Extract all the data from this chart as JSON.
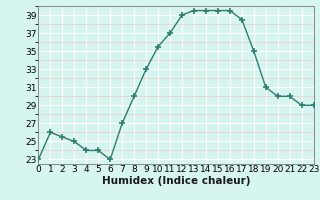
{
  "x": [
    0,
    1,
    2,
    3,
    4,
    5,
    6,
    7,
    8,
    9,
    10,
    11,
    12,
    13,
    14,
    15,
    16,
    17,
    18,
    19,
    20,
    21,
    22,
    23
  ],
  "y": [
    23,
    26,
    25.5,
    25,
    24,
    24,
    23,
    27,
    30,
    33,
    35.5,
    37,
    39,
    39.5,
    39.5,
    39.5,
    39.5,
    38.5,
    35,
    31,
    30,
    30,
    29,
    29
  ],
  "line_color": "#2e7d6e",
  "marker": "+",
  "marker_size": 4,
  "marker_lw": 1.2,
  "line_width": 1.0,
  "bg_color": "#d6f5f0",
  "grid_color_major": "#ffffff",
  "grid_color_minor": "#f0c8c8",
  "xlabel": "Humidex (Indice chaleur)",
  "xlim": [
    0,
    23
  ],
  "ylim": [
    22.5,
    40
  ],
  "yticks": [
    23,
    25,
    27,
    29,
    31,
    33,
    35,
    37,
    39
  ],
  "xticks": [
    0,
    1,
    2,
    3,
    4,
    5,
    6,
    7,
    8,
    9,
    10,
    11,
    12,
    13,
    14,
    15,
    16,
    17,
    18,
    19,
    20,
    21,
    22,
    23
  ],
  "xlabel_fontsize": 7.5,
  "tick_fontsize": 6.5
}
